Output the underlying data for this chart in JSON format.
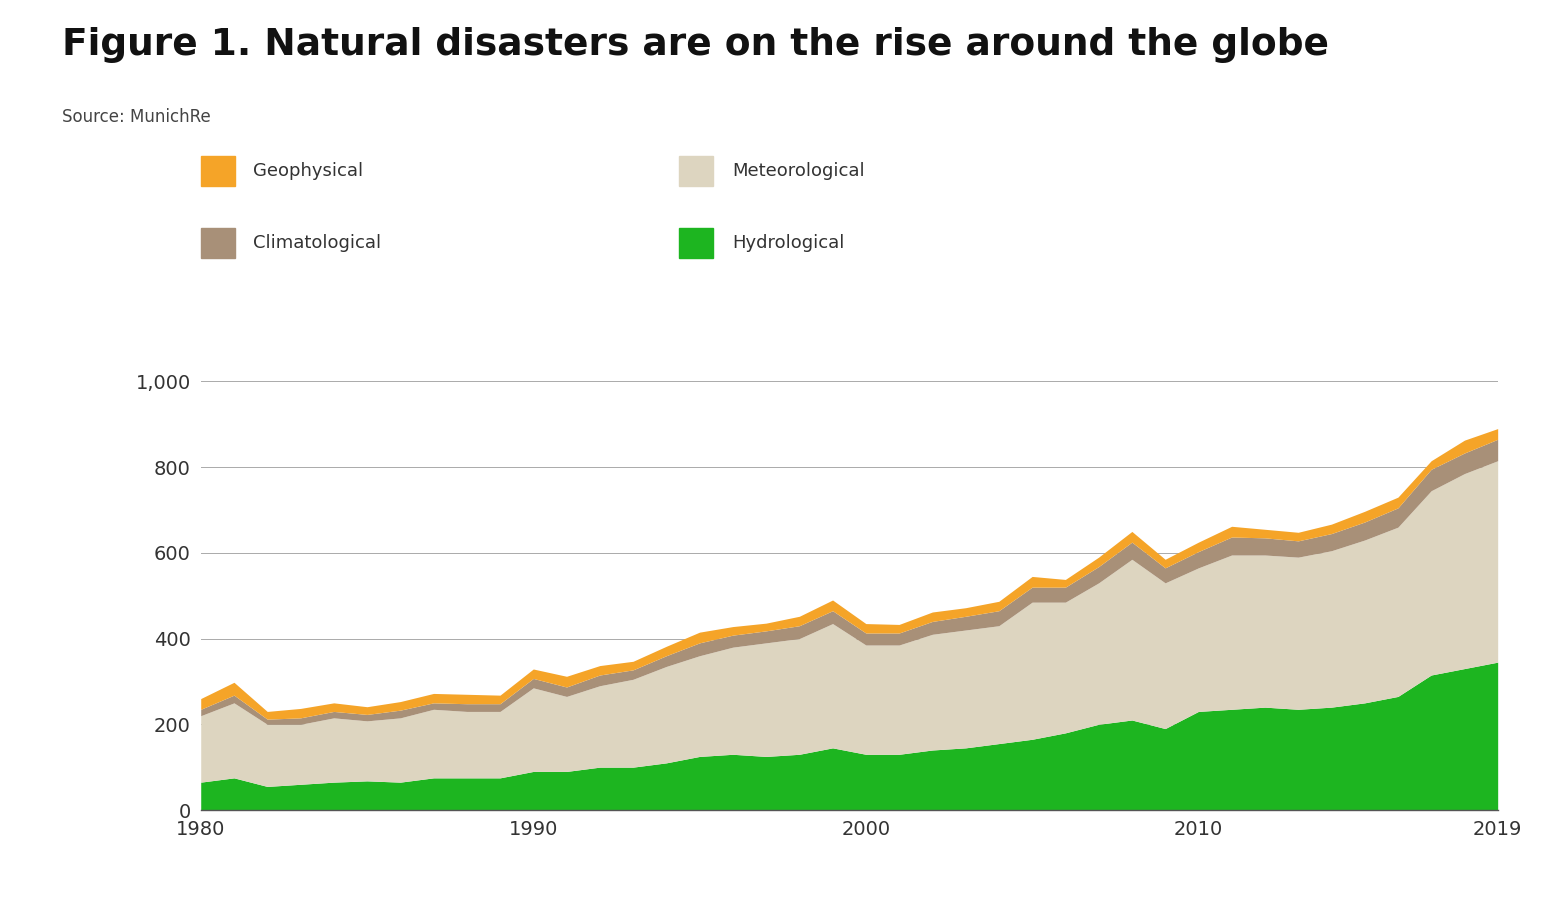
{
  "title": "Figure 1. Natural disasters are on the rise around the globe",
  "source": "Source: MunichRe",
  "years": [
    1980,
    1981,
    1982,
    1983,
    1984,
    1985,
    1986,
    1987,
    1988,
    1989,
    1990,
    1991,
    1992,
    1993,
    1994,
    1995,
    1996,
    1997,
    1998,
    1999,
    2000,
    2001,
    2002,
    2003,
    2004,
    2005,
    2006,
    2007,
    2008,
    2009,
    2010,
    2011,
    2012,
    2013,
    2014,
    2015,
    2016,
    2017,
    2018,
    2019
  ],
  "geophysical": [
    25,
    30,
    18,
    22,
    20,
    18,
    20,
    22,
    22,
    20,
    22,
    25,
    22,
    20,
    22,
    25,
    20,
    18,
    22,
    25,
    22,
    20,
    22,
    20,
    22,
    25,
    18,
    22,
    25,
    20,
    22,
    25,
    20,
    20,
    22,
    25,
    25,
    20,
    30,
    25
  ],
  "climatological": [
    15,
    18,
    12,
    15,
    15,
    15,
    18,
    15,
    18,
    18,
    22,
    22,
    25,
    22,
    25,
    30,
    28,
    28,
    30,
    30,
    28,
    28,
    30,
    32,
    35,
    35,
    35,
    38,
    40,
    35,
    38,
    42,
    40,
    38,
    40,
    42,
    45,
    50,
    48,
    50
  ],
  "meteorological": [
    155,
    175,
    145,
    140,
    150,
    140,
    150,
    160,
    155,
    155,
    195,
    175,
    190,
    205,
    225,
    235,
    250,
    265,
    270,
    290,
    255,
    255,
    270,
    275,
    275,
    320,
    305,
    330,
    375,
    340,
    335,
    360,
    355,
    355,
    365,
    380,
    395,
    430,
    455,
    470
  ],
  "hydrological": [
    65,
    75,
    55,
    60,
    65,
    68,
    65,
    75,
    75,
    75,
    90,
    90,
    100,
    100,
    110,
    125,
    130,
    125,
    130,
    145,
    130,
    130,
    140,
    145,
    155,
    165,
    180,
    200,
    210,
    190,
    230,
    235,
    240,
    235,
    240,
    250,
    265,
    315,
    330,
    345
  ],
  "colors": {
    "geophysical": "#F5A428",
    "climatological": "#A89078",
    "meteorological": "#DDD5C0",
    "hydrological": "#1DB520"
  },
  "ylim": [
    0,
    1050
  ],
  "yticks": [
    0,
    200,
    400,
    600,
    800,
    1000
  ],
  "ytick_labels": [
    "0",
    "200",
    "400",
    "600",
    "800",
    "1,000"
  ],
  "background_color": "#FFFFFF",
  "title_fontsize": 27,
  "source_fontsize": 12,
  "tick_fontsize": 14
}
